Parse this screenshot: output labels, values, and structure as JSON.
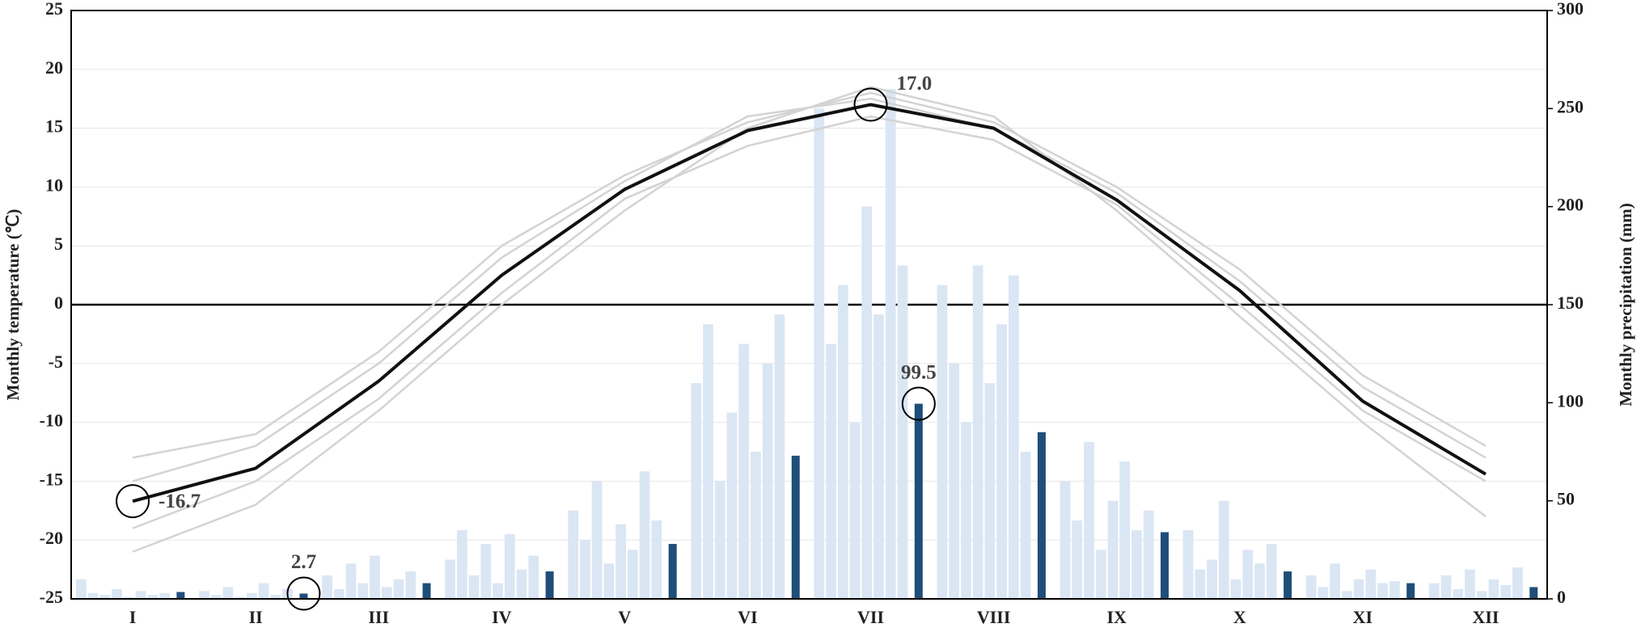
{
  "chart_data": {
    "type": "combo",
    "y_label": "Monthly temperature (℃)",
    "y2_label": "Monthly precipitation (mm)",
    "categories": [
      "I",
      "II",
      "III",
      "IV",
      "V",
      "VI",
      "VII",
      "VIII",
      "IX",
      "X",
      "XI",
      "XII"
    ],
    "ylim": [
      -25,
      25
    ],
    "yticks": [
      -25,
      -20,
      -15,
      -10,
      -5,
      0,
      5,
      10,
      15,
      20,
      25
    ],
    "y2lim": [
      0,
      300
    ],
    "y2ticks": [
      0,
      50,
      100,
      150,
      200,
      250,
      300
    ],
    "grid": true,
    "series": [
      {
        "type": "bar",
        "axis": "y2",
        "color": "#dae6f3",
        "values": [
          10,
          4,
          12,
          20,
          45,
          110,
          250,
          160,
          60,
          35,
          12,
          8
        ]
      },
      {
        "type": "bar",
        "axis": "y2",
        "color": "#dae6f3",
        "values": [
          3,
          2,
          5,
          35,
          30,
          140,
          130,
          120,
          40,
          15,
          6,
          12
        ]
      },
      {
        "type": "bar",
        "axis": "y2",
        "color": "#dae6f3",
        "values": [
          2,
          6,
          18,
          12,
          60,
          60,
          160,
          90,
          80,
          20,
          18,
          5
        ]
      },
      {
        "type": "bar",
        "axis": "y2",
        "color": "#dae6f3",
        "values": [
          5,
          1,
          8,
          28,
          18,
          95,
          90,
          170,
          25,
          50,
          4,
          15
        ]
      },
      {
        "type": "bar",
        "axis": "y2",
        "color": "#dae6f3",
        "values": [
          1,
          3,
          22,
          8,
          38,
          130,
          200,
          110,
          50,
          10,
          10,
          4
        ]
      },
      {
        "type": "bar",
        "axis": "y2",
        "color": "#dae6f3",
        "values": [
          4,
          8,
          6,
          33,
          25,
          75,
          145,
          140,
          70,
          25,
          15,
          10
        ]
      },
      {
        "type": "bar",
        "axis": "y2",
        "color": "#dae6f3",
        "values": [
          2,
          2,
          10,
          15,
          65,
          120,
          260,
          165,
          35,
          18,
          8,
          7
        ]
      },
      {
        "type": "bar",
        "axis": "y2",
        "color": "#dae6f3",
        "values": [
          3,
          5,
          14,
          22,
          40,
          145,
          170,
          75,
          45,
          28,
          9,
          16
        ]
      },
      {
        "type": "bar",
        "axis": "y2",
        "color": "#1f4e79",
        "values": [
          3.5,
          2.7,
          8,
          14,
          28,
          73,
          99.5,
          85,
          34,
          14,
          8,
          6
        ],
        "value_labels": [
          null,
          "2.7",
          null,
          null,
          null,
          null,
          "99.5",
          null,
          null,
          null,
          null,
          null
        ]
      },
      {
        "type": "line",
        "axis": "y",
        "color": "#d3d3d3",
        "values": [
          -21,
          -17,
          -9,
          0,
          8,
          15,
          18.5,
          16,
          8,
          -1,
          -10,
          -18
        ]
      },
      {
        "type": "line",
        "axis": "y",
        "color": "#d3d3d3",
        "values": [
          -13,
          -11,
          -4,
          5,
          11,
          15.5,
          18,
          15.5,
          10,
          3,
          -6,
          -12
        ]
      },
      {
        "type": "line",
        "axis": "y",
        "color": "#d3d3d3",
        "values": [
          -19,
          -15,
          -8,
          1,
          9,
          13.5,
          16,
          14,
          8.5,
          0,
          -9,
          -15
        ]
      },
      {
        "type": "line",
        "axis": "y",
        "color": "#d3d3d3",
        "values": [
          -15,
          -12,
          -5,
          4,
          10.5,
          16,
          17.5,
          15,
          9.5,
          2,
          -7,
          -13
        ]
      },
      {
        "type": "line",
        "axis": "y",
        "color": "#111111",
        "values": [
          -16.7,
          -13.9,
          -6.5,
          2.5,
          9.8,
          14.8,
          17.0,
          15.0,
          8.9,
          1.2,
          -8.2,
          -14.4
        ],
        "value_labels": [
          "-16.7",
          null,
          null,
          null,
          null,
          null,
          "17.0",
          null,
          null,
          null,
          null,
          null
        ]
      }
    ]
  }
}
